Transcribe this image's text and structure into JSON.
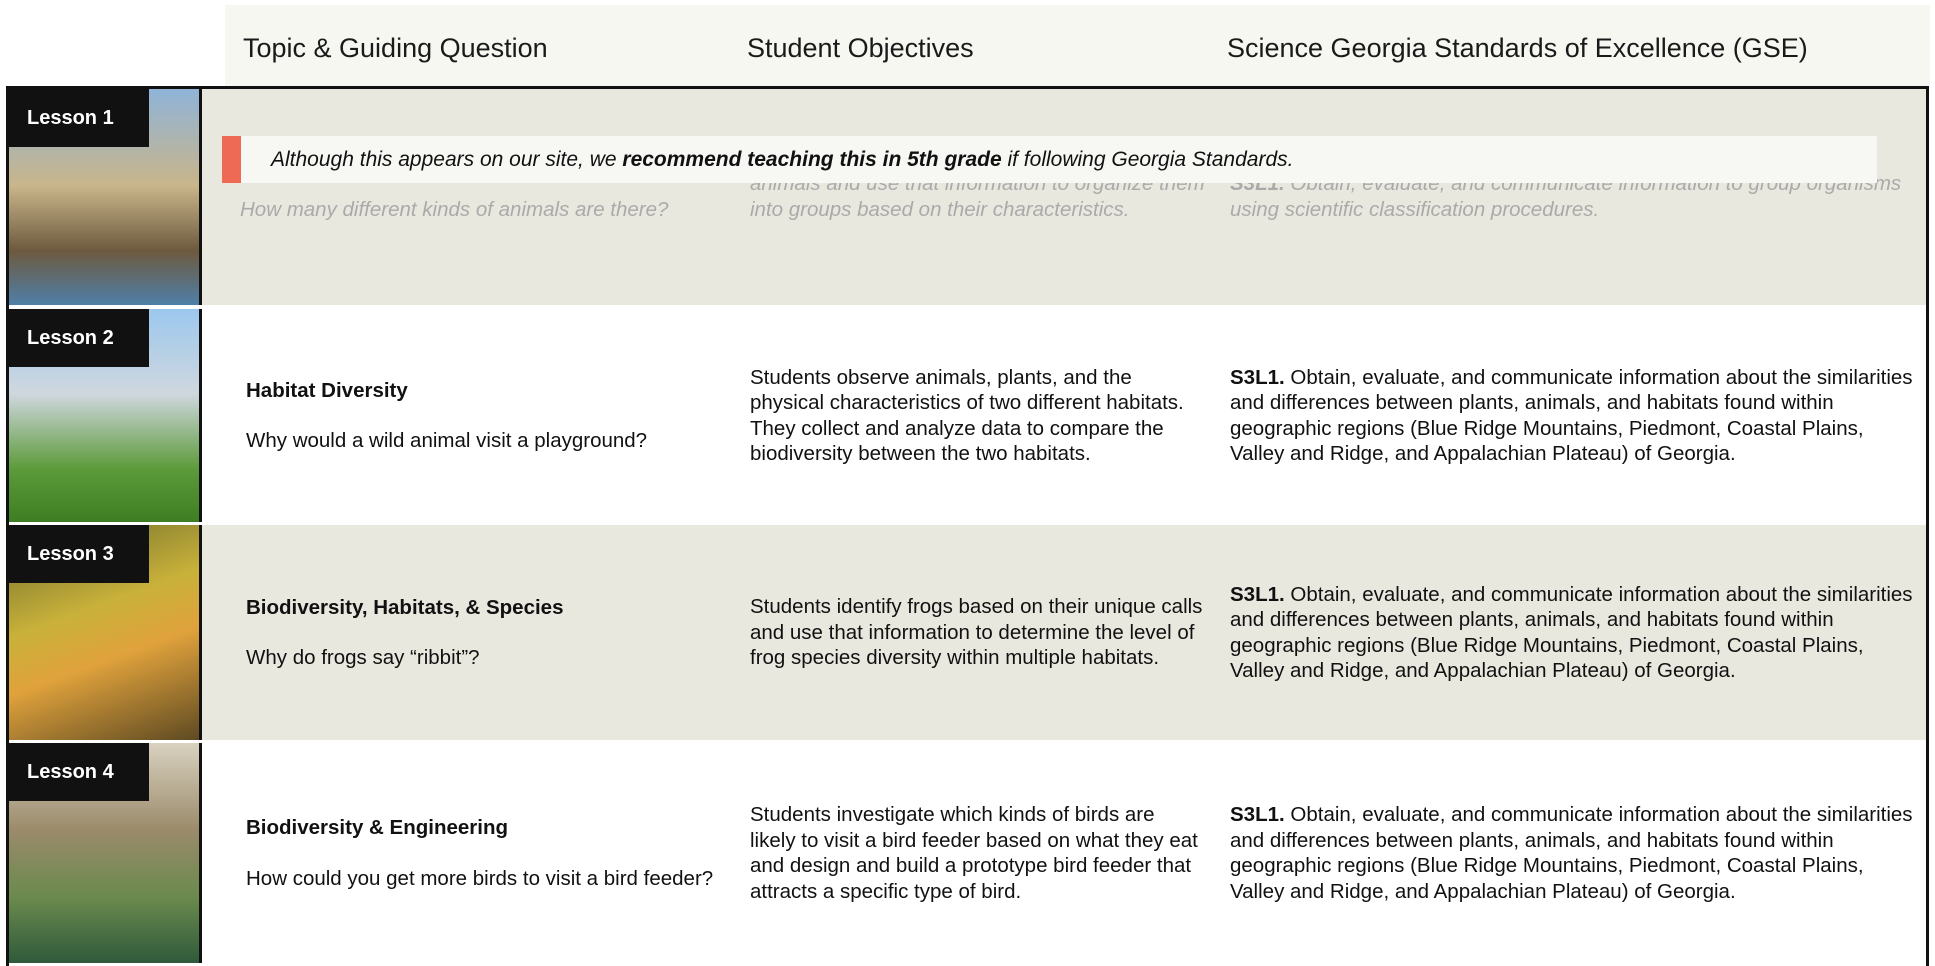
{
  "header": {
    "columns": [
      "Topic & Guiding Question",
      "Student Objectives",
      "Science Georgia Standards of Excellence (GSE)"
    ]
  },
  "notice": {
    "before": "Although this appears on our site, we ",
    "bold": "recommend teaching this in 5th grade",
    "after": " if following Georgia Standards."
  },
  "lessons": [
    {
      "label": "Lesson 1",
      "topic": null,
      "question": "How many different kinds of animals are there?",
      "objectives": "animals and use that information to organize them into groups based on their characteristics.",
      "standard_code": "S3L1.",
      "standard_text": " Obtain, evaluate, and communicate information to group organisms using scientific classification procedures."
    },
    {
      "label": "Lesson 2",
      "topic": "Habitat Diversity",
      "question": "Why would a wild animal visit a playground?",
      "objectives": "Students observe animals, plants, and the physical characteristics of two different habitats. They collect and analyze data to compare the biodiversity between the two habitats.",
      "standard_code": "S3L1.",
      "standard_text": " Obtain, evaluate, and communicate information about the similarities and differences between plants, animals, and habitats found within geographic regions (Blue Ridge Mountains, Piedmont, Coastal Plains, Valley and Ridge, and Appalachian Plateau) of Georgia."
    },
    {
      "label": "Lesson 3",
      "topic": "Biodiversity, Habitats, & Species",
      "question": "Why do frogs say “ribbit”?",
      "objectives": "Students identify frogs based on their unique calls and use that information to determine the level of frog species diversity within multiple habitats.",
      "standard_code": "S3L1.",
      "standard_text": " Obtain, evaluate, and communicate information about the similarities and differences between plants, animals, and habitats found within geographic regions (Blue Ridge Mountains, Piedmont, Coastal Plains, Valley and Ridge, and Appalachian Plateau) of Georgia."
    },
    {
      "label": "Lesson 4",
      "topic": "Biodiversity & Engineering",
      "question": "How could you get more birds to visit a bird feeder?",
      "objectives": "Students investigate which kinds of birds are likely to visit a bird feeder based on what they eat and design and build a prototype bird feeder that attracts a specific type of bird.",
      "standard_code": "S3L1.",
      "standard_text": " Obtain, evaluate, and communicate information about the similarities and differences between plants, animals, and habitats found within geographic regions (Blue Ridge Mountains, Piedmont, Coastal Plains, Valley and Ridge, and Appalachian Plateau) of Georgia."
    }
  ]
}
